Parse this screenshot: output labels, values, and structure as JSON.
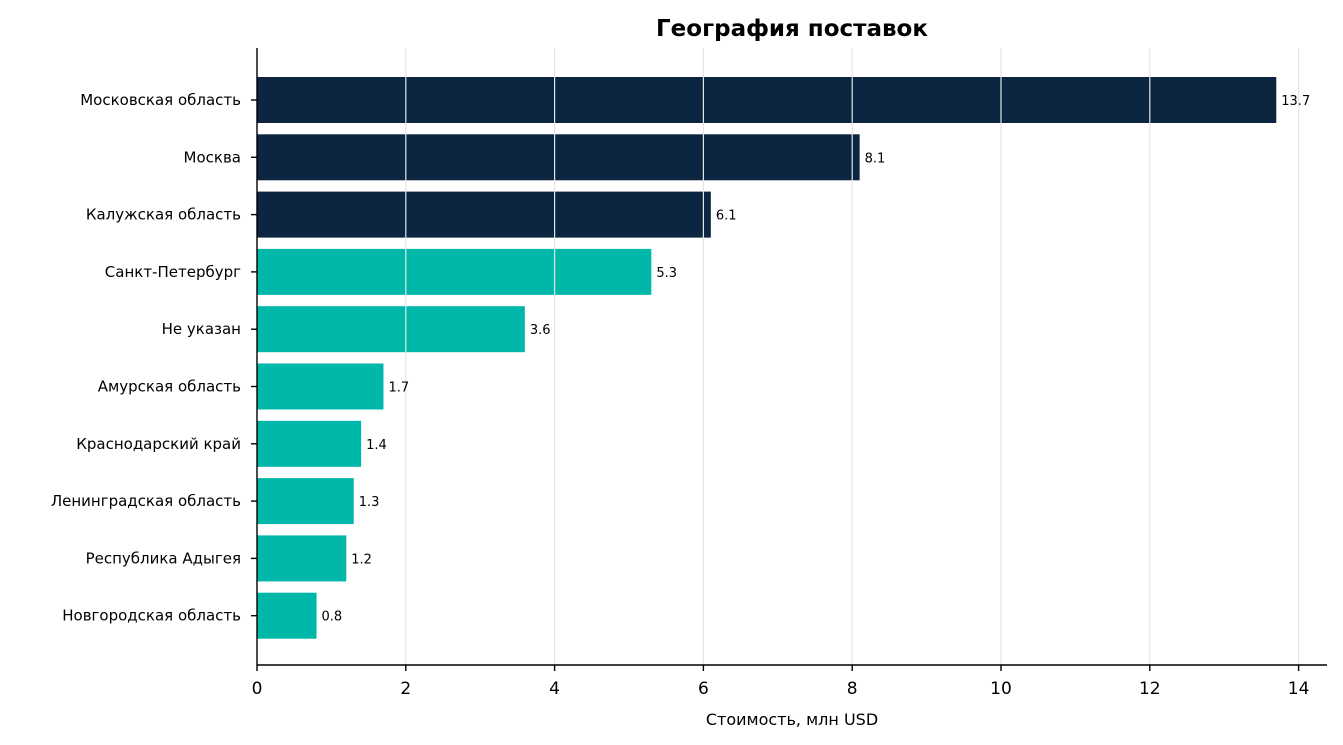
{
  "chart_data": {
    "type": "bar",
    "orientation": "horizontal",
    "title": "География поставок",
    "xlabel": "Стоимость, млн USD",
    "ylabel": "",
    "xlim": [
      0,
      14.4
    ],
    "xticks": [
      0,
      2,
      4,
      6,
      8,
      10,
      12,
      14
    ],
    "grid": "vertical",
    "highlight_color": "#0c2540",
    "base_color": "#00b8a9",
    "categories": [
      "Московская область",
      "Москва",
      "Калужская область",
      "Санкт-Петербург",
      "Не указан",
      "Амурская область",
      "Краснодарский край",
      "Ленинградская область",
      "Республика Адыгея",
      "Новгородская область"
    ],
    "values": [
      13.7,
      8.1,
      6.1,
      5.3,
      3.6,
      1.7,
      1.4,
      1.3,
      1.2,
      0.8
    ],
    "value_labels": [
      "13.7",
      "8.1",
      "6.1",
      "5.3",
      "3.6",
      "1.7",
      "1.4",
      "1.3",
      "1.2",
      "0.8"
    ],
    "highlighted": [
      true,
      true,
      true,
      false,
      false,
      false,
      false,
      false,
      false,
      false
    ]
  }
}
